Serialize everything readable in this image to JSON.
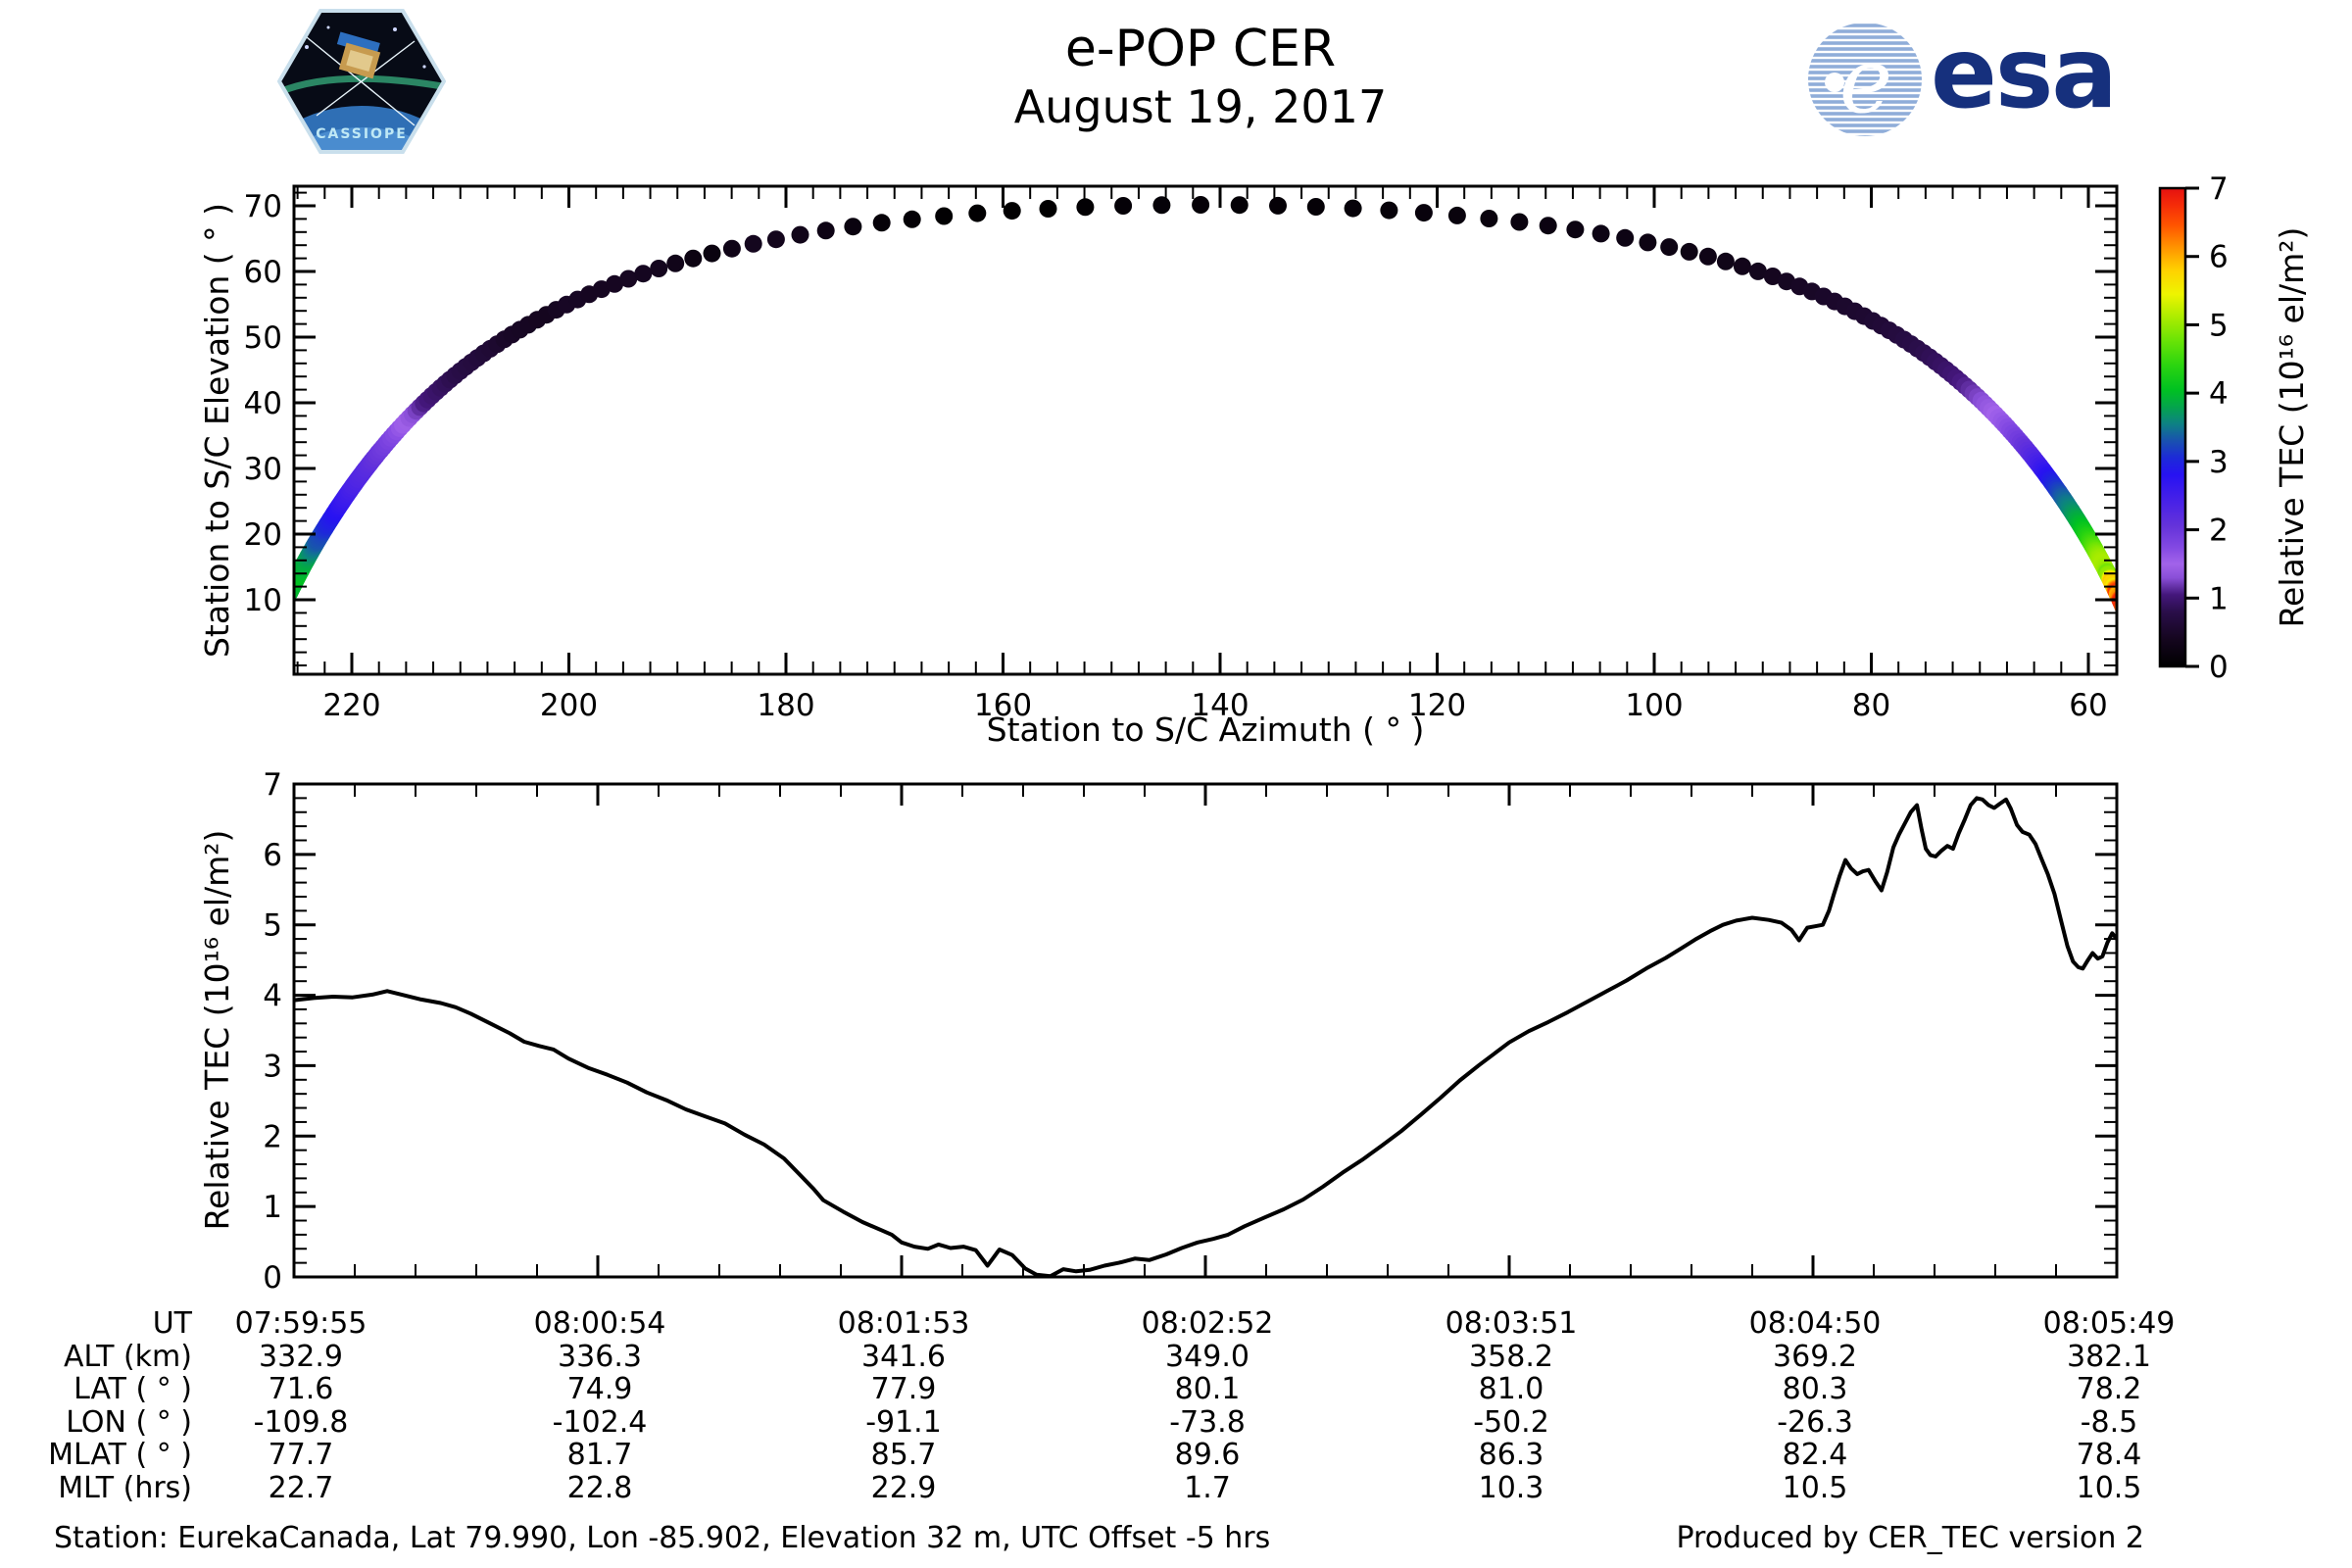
{
  "header": {
    "title": "e-POP CER",
    "subtitle": "August 19, 2017",
    "cassiope_patch_label": "CASSIOPE",
    "esa_logo_text": "esa"
  },
  "footer": {
    "left": "Station: EurekaCanada, Lat 79.990, Lon -85.902, Elevation 32 m, UTC Offset -5 hrs",
    "right": "Produced by CER_TEC version 2"
  },
  "table": {
    "rows": [
      {
        "label": "UT",
        "values": [
          "07:59:55",
          "08:00:54",
          "08:01:53",
          "08:02:52",
          "08:03:51",
          "08:04:50",
          "08:05:49"
        ]
      },
      {
        "label": "ALT (km)",
        "values": [
          "332.9",
          "336.3",
          "341.6",
          "349.0",
          "358.2",
          "369.2",
          "382.1"
        ]
      },
      {
        "label": "LAT ( ° )",
        "values": [
          "71.6",
          "74.9",
          "77.9",
          "80.1",
          "81.0",
          "80.3",
          "78.2"
        ]
      },
      {
        "label": "LON ( ° )",
        "values": [
          "-109.8",
          "-102.4",
          "-91.1",
          "-73.8",
          "-50.2",
          "-26.3",
          "-8.5"
        ]
      },
      {
        "label": "MLAT ( ° )",
        "values": [
          "77.7",
          "81.7",
          "85.7",
          "89.6",
          "86.3",
          "82.4",
          "78.4"
        ]
      },
      {
        "label": "MLT (hrs)",
        "values": [
          "22.7",
          "22.8",
          "22.9",
          "1.7",
          "10.3",
          "10.5",
          "10.5"
        ]
      }
    ]
  },
  "chart_data": [
    {
      "type": "scatter",
      "description": "Sky track of CASSIOPE pass over Eureka station; dots colored by relative TEC",
      "xlabel": "Station to S/C Azimuth ( ° )",
      "ylabel": "Station to S/C Elevation ( ° )",
      "x_ticks": [
        220,
        200,
        180,
        160,
        140,
        120,
        100,
        80,
        60
      ],
      "y_ticks": [
        10,
        20,
        30,
        40,
        50,
        60,
        70
      ],
      "xlim": [
        225.7,
        57.5
      ],
      "ylim": [
        -1.3,
        73.3
      ],
      "x_axis_reversed": true,
      "marker_radius_px": 9,
      "max_elevation_deg": 70.2,
      "pass_model": {
        "t0_s": 151,
        "ground_speed_km_s": 7.38,
        "closest_range_km": 118,
        "bearing_deg": 141.8,
        "earth_radius_km": 6371,
        "duration_s": 354,
        "sample_step_s": 1,
        "alt_anchors": [
          [
            0,
            332.9
          ],
          [
            59,
            336.3
          ],
          [
            118,
            341.6
          ],
          [
            177,
            349.0
          ],
          [
            236,
            358.2
          ],
          [
            295,
            369.2
          ],
          [
            354,
            382.1
          ]
        ]
      },
      "colormap_stops": [
        [
          0.0,
          "#000000"
        ],
        [
          0.4,
          "#15061f"
        ],
        [
          0.8,
          "#2a0e4a"
        ],
        [
          1.05,
          "#44177c"
        ],
        [
          1.3,
          "#8a4fd8"
        ],
        [
          1.5,
          "#a263ea"
        ],
        [
          1.75,
          "#8248e2"
        ],
        [
          2.05,
          "#6533da"
        ],
        [
          2.45,
          "#4520e8"
        ],
        [
          2.8,
          "#2712f2"
        ],
        [
          3.05,
          "#1d2ad8"
        ],
        [
          3.3,
          "#1951b0"
        ],
        [
          3.55,
          "#0d8184"
        ],
        [
          3.8,
          "#04a54b"
        ],
        [
          4.05,
          "#00c121"
        ],
        [
          4.4,
          "#2ad410"
        ],
        [
          4.75,
          "#66e306"
        ],
        [
          5.1,
          "#a9ec00"
        ],
        [
          5.45,
          "#eef400"
        ],
        [
          5.8,
          "#ffd100"
        ],
        [
          6.1,
          "#ff9a00"
        ],
        [
          6.45,
          "#ff5600"
        ],
        [
          6.75,
          "#f52c08"
        ],
        [
          7.0,
          "#e51111"
        ]
      ],
      "colorbar": {
        "label": "Relative TEC (10¹⁶ el/m²)",
        "ticks": [
          0,
          1,
          2,
          3,
          4,
          5,
          6,
          7
        ],
        "range": [
          0,
          7
        ]
      }
    },
    {
      "type": "line",
      "description": "Relative TEC versus universal time",
      "ylabel": "Relative TEC (10¹⁶ el/m²)",
      "ylim": [
        0,
        7
      ],
      "y_ticks": [
        0,
        1,
        2,
        3,
        4,
        5,
        6,
        7
      ],
      "x_tick_labels": [
        "07:59:55",
        "08:00:54",
        "08:01:53",
        "08:02:52",
        "08:03:51",
        "08:04:50",
        "08:05:49"
      ],
      "duration_s": 354,
      "line_color": "#000000",
      "series": [
        {
          "name": "Relative TEC",
          "points": [
            [
              0,
              3.93
            ],
            [
              3.8,
              3.96
            ],
            [
              7.6,
              3.98
            ],
            [
              11.4,
              3.97
            ],
            [
              15.2,
              4.01
            ],
            [
              18.1,
              4.06
            ],
            [
              20.9,
              4.01
            ],
            [
              24.7,
              3.94
            ],
            [
              28.5,
              3.89
            ],
            [
              31.4,
              3.83
            ],
            [
              34.3,
              3.74
            ],
            [
              38.1,
              3.6
            ],
            [
              41.9,
              3.46
            ],
            [
              44.7,
              3.34
            ],
            [
              47.6,
              3.28
            ],
            [
              50.4,
              3.23
            ],
            [
              53.3,
              3.1
            ],
            [
              57.1,
              2.97
            ],
            [
              60.9,
              2.87
            ],
            [
              64.7,
              2.76
            ],
            [
              68.5,
              2.62
            ],
            [
              72.3,
              2.51
            ],
            [
              76.1,
              2.38
            ],
            [
              79.9,
              2.28
            ],
            [
              83.7,
              2.18
            ],
            [
              87.5,
              2.02
            ],
            [
              91.3,
              1.88
            ],
            [
              95.2,
              1.68
            ],
            [
              98,
              1.47
            ],
            [
              100.9,
              1.25
            ],
            [
              102.8,
              1.09
            ],
            [
              106.6,
              0.93
            ],
            [
              110.4,
              0.78
            ],
            [
              114.2,
              0.66
            ],
            [
              116.1,
              0.6
            ],
            [
              118,
              0.49
            ],
            [
              120.5,
              0.43
            ],
            [
              123.1,
              0.4
            ],
            [
              125.2,
              0.46
            ],
            [
              127.5,
              0.41
            ],
            [
              130,
              0.43
            ],
            [
              132.4,
              0.38
            ],
            [
              134.7,
              0.16
            ],
            [
              137,
              0.39
            ],
            [
              139.5,
              0.31
            ],
            [
              142,
              0.12
            ],
            [
              144.2,
              0.03
            ],
            [
              146.9,
              0.01
            ],
            [
              149.4,
              0.11
            ],
            [
              151.9,
              0.08
            ],
            [
              154.5,
              0.1
            ],
            [
              157.4,
              0.16
            ],
            [
              160.2,
              0.2
            ],
            [
              163.3,
              0.26
            ],
            [
              166.1,
              0.24
            ],
            [
              169.4,
              0.32
            ],
            [
              172.4,
              0.41
            ],
            [
              175.5,
              0.49
            ],
            [
              178.5,
              0.54
            ],
            [
              181.4,
              0.6
            ],
            [
              184.6,
              0.72
            ],
            [
              188.4,
              0.84
            ],
            [
              192.2,
              0.96
            ],
            [
              196,
              1.1
            ],
            [
              199.8,
              1.28
            ],
            [
              203.6,
              1.48
            ],
            [
              207.4,
              1.66
            ],
            [
              211.2,
              1.86
            ],
            [
              215,
              2.07
            ],
            [
              218.8,
              2.3
            ],
            [
              222.6,
              2.54
            ],
            [
              226.4,
              2.79
            ],
            [
              230.2,
              3.01
            ],
            [
              233.1,
              3.17
            ],
            [
              236,
              3.33
            ],
            [
              239.8,
              3.49
            ],
            [
              243.6,
              3.62
            ],
            [
              247.4,
              3.76
            ],
            [
              251.2,
              3.91
            ],
            [
              255,
              4.06
            ],
            [
              258.8,
              4.21
            ],
            [
              262.6,
              4.38
            ],
            [
              266.4,
              4.53
            ],
            [
              269.3,
              4.66
            ],
            [
              272.1,
              4.79
            ],
            [
              275,
              4.91
            ],
            [
              277.5,
              5.0
            ],
            [
              280.1,
              5.06
            ],
            [
              283.2,
              5.1
            ],
            [
              286.4,
              5.07
            ],
            [
              288.9,
              5.03
            ],
            [
              290.8,
              4.93
            ],
            [
              292.3,
              4.78
            ],
            [
              293.9,
              4.96
            ],
            [
              295.4,
              4.98
            ],
            [
              296.9,
              5.0
            ],
            [
              298.1,
              5.2
            ],
            [
              299,
              5.42
            ],
            [
              300.2,
              5.7
            ],
            [
              301.3,
              5.92
            ],
            [
              302.4,
              5.8
            ],
            [
              303.6,
              5.72
            ],
            [
              304.7,
              5.76
            ],
            [
              305.8,
              5.78
            ],
            [
              307.1,
              5.62
            ],
            [
              308.3,
              5.49
            ],
            [
              309.4,
              5.75
            ],
            [
              310.6,
              6.1
            ],
            [
              311.7,
              6.28
            ],
            [
              312.9,
              6.45
            ],
            [
              314,
              6.6
            ],
            [
              315.2,
              6.7
            ],
            [
              316.1,
              6.35
            ],
            [
              316.9,
              6.08
            ],
            [
              317.8,
              5.99
            ],
            [
              318.8,
              5.97
            ],
            [
              319.9,
              6.05
            ],
            [
              321.1,
              6.12
            ],
            [
              322.2,
              6.08
            ],
            [
              323.3,
              6.3
            ],
            [
              324.5,
              6.5
            ],
            [
              325.6,
              6.7
            ],
            [
              326.8,
              6.8
            ],
            [
              327.9,
              6.78
            ],
            [
              329.1,
              6.7
            ],
            [
              330.2,
              6.66
            ],
            [
              331.3,
              6.72
            ],
            [
              332.5,
              6.78
            ],
            [
              333.4,
              6.65
            ],
            [
              334.6,
              6.42
            ],
            [
              335.7,
              6.32
            ],
            [
              337,
              6.28
            ],
            [
              338.2,
              6.15
            ],
            [
              339.3,
              5.95
            ],
            [
              340.6,
              5.72
            ],
            [
              341.9,
              5.44
            ],
            [
              343.2,
              5.05
            ],
            [
              344.4,
              4.7
            ],
            [
              345.5,
              4.48
            ],
            [
              346.5,
              4.4
            ],
            [
              347.4,
              4.38
            ],
            [
              348.4,
              4.5
            ],
            [
              349.3,
              4.6
            ],
            [
              350.3,
              4.52
            ],
            [
              351.2,
              4.55
            ],
            [
              352.2,
              4.75
            ],
            [
              353.1,
              4.88
            ],
            [
              354,
              4.8
            ]
          ]
        }
      ]
    }
  ]
}
